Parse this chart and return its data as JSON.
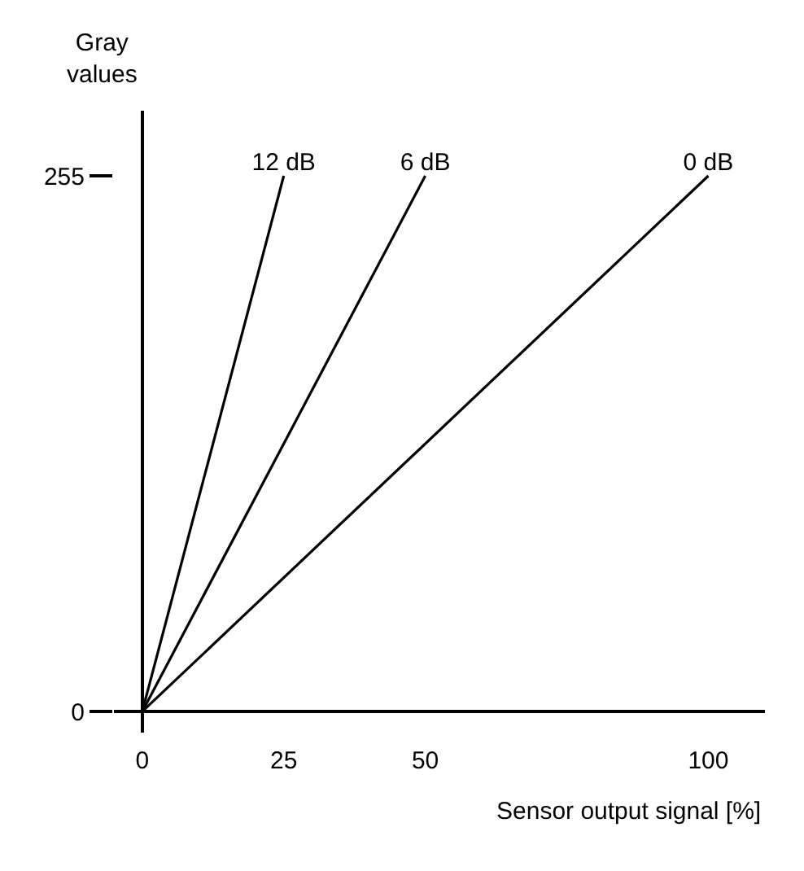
{
  "chart_data": {
    "type": "line",
    "xlabel": "Sensor output signal [%]",
    "ylabel": "Gray\nvalues",
    "xlim": [
      -5,
      110
    ],
    "ylim": [
      -10,
      286
    ],
    "xticks": [
      0,
      25,
      50,
      100
    ],
    "yticks": [
      0,
      255
    ],
    "grid": false,
    "legend": false,
    "marker": "none",
    "line_style": "solid",
    "series": [
      {
        "name": "12 dB",
        "color": "#000000",
        "x": [
          0,
          25
        ],
        "values": [
          0,
          255
        ]
      },
      {
        "name": "6 dB",
        "color": "#000000",
        "x": [
          0,
          50
        ],
        "values": [
          0,
          255
        ]
      },
      {
        "name": "0 dB",
        "color": "#000000",
        "x": [
          0,
          100
        ],
        "values": [
          0,
          255
        ]
      }
    ]
  }
}
